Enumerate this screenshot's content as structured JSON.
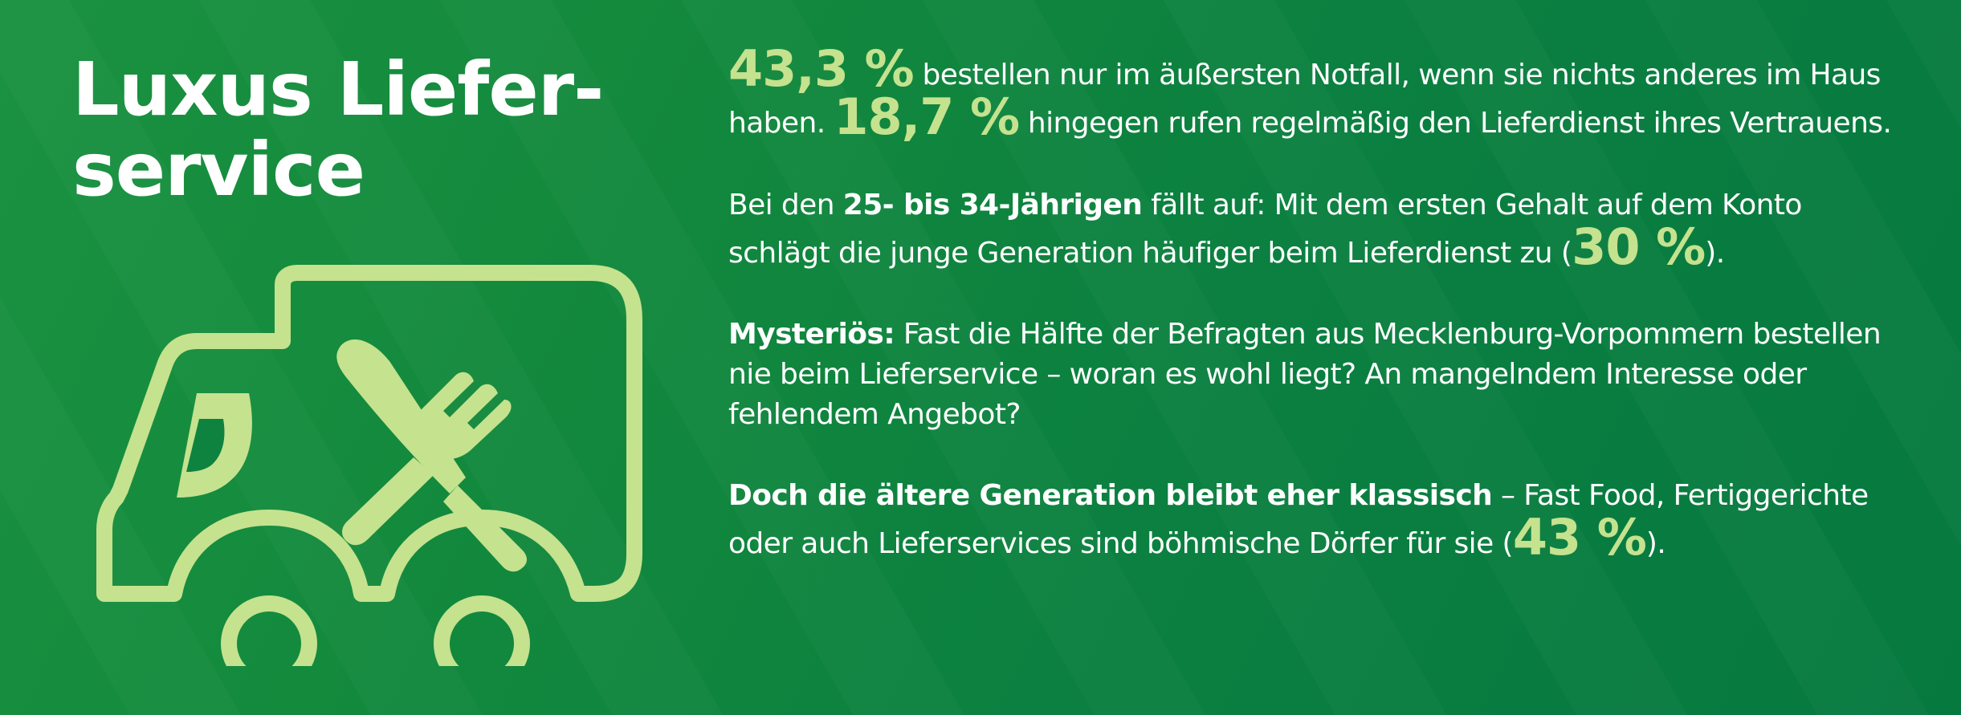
{
  "title": {
    "line1": "Luxus Liefer-",
    "line2": "service"
  },
  "colors": {
    "background": "#0e853f",
    "accent": "#c5e28f",
    "text": "#ffffff"
  },
  "icon": {
    "name": "delivery-truck-with-cutlery-icon",
    "logo_letter": "D"
  },
  "paragraphs": {
    "p1": {
      "stat1": "43,3 %",
      "text1": " bestellen nur im äußersten Notfall, wenn sie nichts anderes im Haus haben. ",
      "stat2": "18,7 %",
      "text2": " hingegen rufen regelmäßig den Lieferdienst ihres Vertrauens."
    },
    "p2": {
      "text1": "Bei den ",
      "bold": "25- bis 34-Jährigen",
      "text2": " fällt auf: Mit dem ersten Gehalt auf dem Konto schlägt die junge Generation häufiger beim Lieferdienst zu (",
      "stat": "30 %",
      "text3": ")."
    },
    "p3": {
      "bold": "Mysteriös:",
      "text": " Fast die Hälfte der Befragten aus Mecklenburg-Vorpommern bestellen nie beim Lieferservice – woran es wohl liegt? An mangelndem Interesse oder fehlendem Angebot?"
    },
    "p4": {
      "bold": "Doch die ältere Generation bleibt eher klassisch",
      "text1": " – Fast Food, Fertigge­richte oder auch Lieferservices sind böhmische Dörfer für sie (",
      "stat": "43 %",
      "text2": ")."
    }
  }
}
